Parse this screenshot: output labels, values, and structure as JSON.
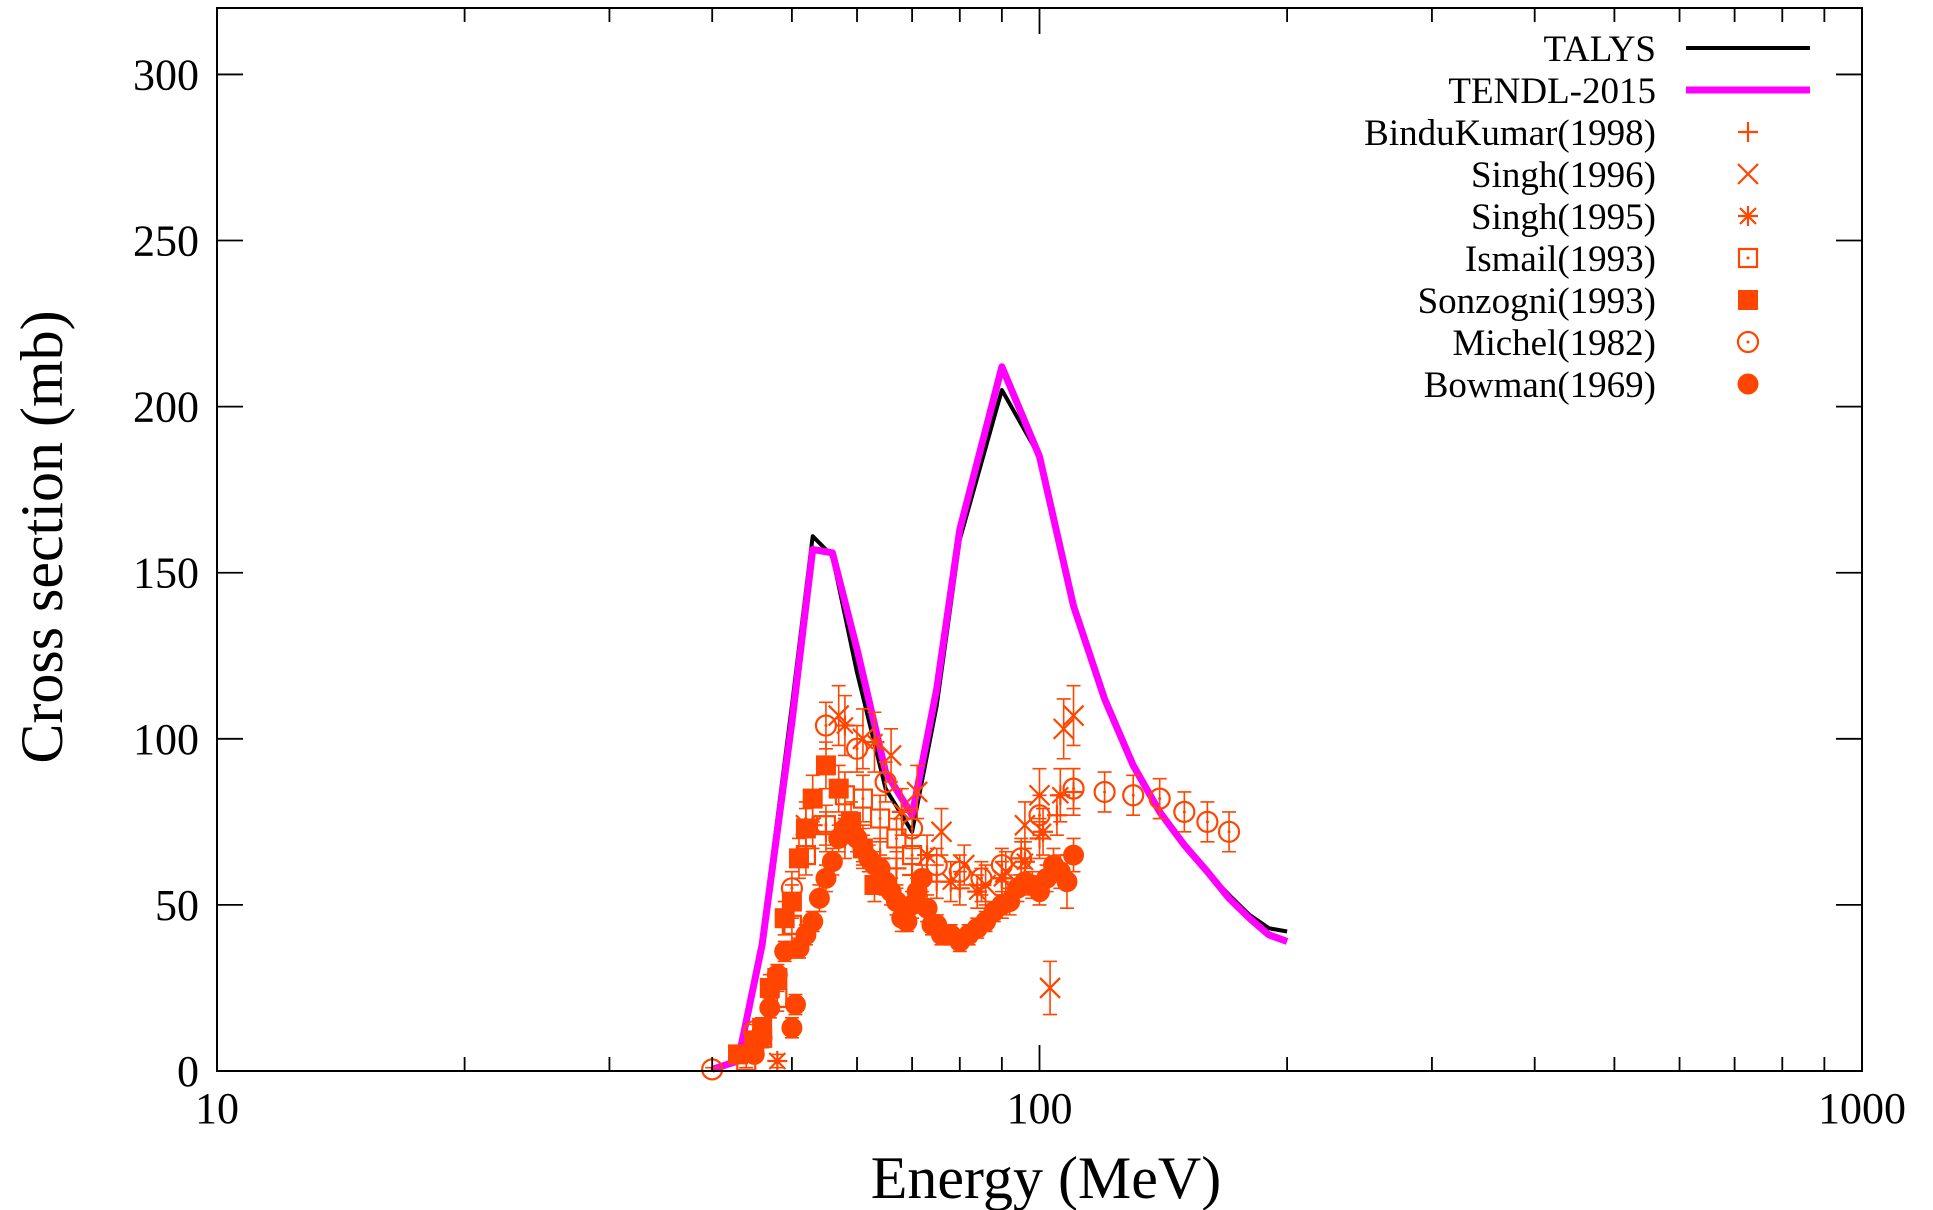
{
  "chart_data": {
    "type": "line",
    "xlabel": "Energy (MeV)",
    "ylabel": "Cross section (mb)",
    "xscale": "log",
    "xlim": [
      10,
      1000
    ],
    "ylim": [
      0,
      320
    ],
    "xticks": [
      {
        "value": 10,
        "label": "10"
      },
      {
        "value": 100,
        "label": "100"
      },
      {
        "value": 1000,
        "label": "1000"
      }
    ],
    "yticks": [
      {
        "value": 0,
        "label": "0"
      },
      {
        "value": 50,
        "label": "50"
      },
      {
        "value": 100,
        "label": "100"
      },
      {
        "value": 150,
        "label": "150"
      },
      {
        "value": 200,
        "label": "200"
      },
      {
        "value": 250,
        "label": "250"
      },
      {
        "value": 300,
        "label": "300"
      }
    ],
    "grid": false,
    "legend_position": "top-right",
    "marker_color": "#ff4500",
    "series": [
      {
        "name": "TALYS",
        "kind": "line",
        "color": "#000000",
        "x": [
          40,
          43,
          46,
          50,
          53,
          56,
          60,
          65,
          70,
          75,
          80,
          90,
          100,
          110,
          120,
          130,
          140,
          150,
          160,
          170,
          180,
          190,
          200
        ],
        "y": [
          0.5,
          3,
          40,
          110,
          161,
          155,
          120,
          85,
          72,
          110,
          160,
          205,
          185,
          140,
          112,
          92,
          78,
          68,
          60,
          53,
          47,
          43,
          42
        ]
      },
      {
        "name": "TENDL-2015",
        "kind": "line",
        "color": "#ff00ff",
        "x": [
          40,
          43,
          46,
          50,
          53,
          56,
          60,
          65,
          70,
          75,
          80,
          90,
          100,
          110,
          120,
          130,
          140,
          150,
          160,
          170,
          180,
          190,
          200
        ],
        "y": [
          0.5,
          3,
          38,
          105,
          157,
          156,
          127,
          90,
          77,
          115,
          163,
          212,
          185,
          140,
          112,
          92,
          78,
          68,
          60,
          52,
          46,
          41,
          39
        ]
      },
      {
        "name": "BinduKumar(1998)",
        "kind": "points",
        "marker": "plus",
        "x": [
          55,
          58,
          61,
          64,
          67,
          70,
          75,
          80,
          85,
          90,
          95,
          100,
          105,
          110
        ],
        "y": [
          72,
          70,
          68,
          64,
          61,
          59,
          57,
          55,
          56,
          58,
          64,
          70,
          77,
          84
        ],
        "err": [
          6,
          6,
          6,
          6,
          5,
          5,
          5,
          5,
          5,
          5,
          6,
          6,
          6,
          7
        ]
      },
      {
        "name": "Singh(1996)",
        "kind": "points",
        "marker": "x",
        "x": [
          52,
          57,
          61,
          66,
          71,
          76,
          81,
          86,
          91,
          96,
          100,
          103,
          107,
          110
        ],
        "y": [
          74,
          107,
          100,
          95,
          84,
          72,
          62,
          56,
          60,
          74,
          83,
          25,
          103,
          107
        ],
        "err": [
          7,
          9,
          9,
          8,
          8,
          7,
          6,
          6,
          6,
          7,
          8,
          8,
          9,
          9
        ]
      },
      {
        "name": "Singh(1995)",
        "kind": "points",
        "marker": "star",
        "x": [
          48,
          53,
          58,
          63,
          68,
          73,
          78,
          84,
          90,
          96,
          101,
          106
        ],
        "y": [
          3,
          74,
          104,
          99,
          78,
          65,
          57,
          54,
          58,
          63,
          72,
          83
        ],
        "err": [
          2,
          7,
          9,
          9,
          7,
          6,
          6,
          5,
          5,
          6,
          7,
          8
        ]
      },
      {
        "name": "Ismail(1993)",
        "kind": "points",
        "marker": "square-open",
        "x": [
          44,
          46,
          48,
          50,
          52,
          55,
          58,
          61,
          64,
          67,
          70
        ],
        "y": [
          3,
          10,
          22,
          44,
          65,
          74,
          83,
          82,
          76,
          70,
          65
        ],
        "err": [
          2,
          3,
          4,
          5,
          6,
          6,
          7,
          7,
          7,
          6,
          6
        ]
      },
      {
        "name": "Sonzogni(1993)",
        "kind": "points",
        "marker": "square-filled",
        "x": [
          43,
          45,
          46,
          47,
          48,
          49,
          50,
          51,
          52,
          53,
          55,
          57,
          59,
          61,
          63
        ],
        "y": [
          5,
          9,
          13,
          25,
          28,
          46,
          51,
          64,
          73,
          82,
          92,
          85,
          75,
          67,
          56
        ],
        "err": [
          2,
          3,
          3,
          4,
          4,
          5,
          5,
          6,
          6,
          7,
          7,
          7,
          6,
          6,
          5
        ]
      },
      {
        "name": "Michel(1982)",
        "kind": "points",
        "marker": "circle-open",
        "x": [
          40,
          45,
          50,
          55,
          60,
          65,
          70,
          75,
          80,
          85,
          90,
          95,
          100,
          110,
          120,
          130,
          140,
          150,
          160,
          170
        ],
        "y": [
          0.5,
          12,
          55,
          104,
          97,
          87,
          73,
          62,
          60,
          58,
          62,
          64,
          77,
          85,
          84,
          83,
          82,
          78,
          75,
          72
        ],
        "err": [
          0.5,
          2,
          5,
          7,
          7,
          6,
          6,
          5,
          5,
          5,
          5,
          5,
          6,
          6,
          6,
          6,
          6,
          6,
          6,
          6
        ]
      },
      {
        "name": "Bowman(1969)",
        "kind": "points",
        "marker": "circle-filled",
        "x": [
          45,
          46,
          47,
          48,
          49,
          50,
          50.5,
          51,
          52,
          53,
          54,
          55,
          56,
          57,
          58,
          59,
          60,
          61,
          62,
          63,
          64,
          65,
          66,
          67,
          68,
          69,
          70,
          71,
          72,
          73,
          74,
          75,
          76,
          78,
          80,
          82,
          84,
          86,
          88,
          90,
          92,
          94,
          96,
          98,
          100,
          102,
          104,
          106,
          108,
          110
        ],
        "y": [
          5,
          10,
          19,
          29,
          36,
          13,
          20,
          37,
          41,
          45,
          52,
          58,
          63,
          70,
          73,
          74,
          70,
          67,
          64,
          62,
          61,
          57,
          54,
          51,
          46,
          45,
          50,
          54,
          58,
          49,
          44,
          44,
          41,
          41,
          39,
          41,
          43,
          45,
          48,
          50,
          51,
          55,
          57,
          56,
          54,
          58,
          62,
          60,
          57,
          65
        ],
        "err": [
          2,
          2,
          3,
          3,
          3,
          3,
          3,
          3,
          3,
          3,
          4,
          4,
          4,
          4,
          4,
          4,
          4,
          4,
          4,
          4,
          4,
          4,
          4,
          4,
          4,
          3,
          4,
          4,
          4,
          4,
          3,
          3,
          3,
          3,
          3,
          3,
          3,
          3,
          3,
          4,
          4,
          4,
          4,
          4,
          4,
          4,
          5,
          5,
          8,
          5
        ]
      }
    ]
  }
}
